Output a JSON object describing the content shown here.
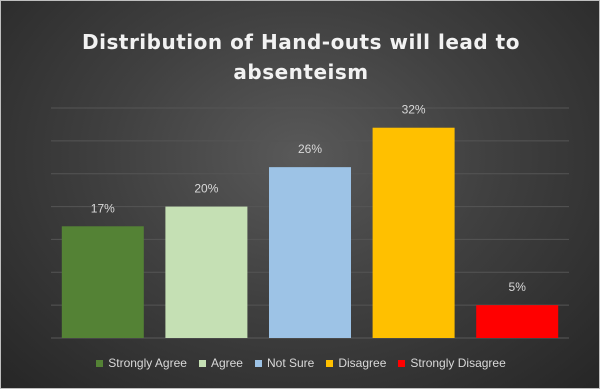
{
  "chart_data": {
    "type": "bar",
    "title": "Distribution of Hand-outs will lead to absenteism",
    "categories": [
      "Strongly Agree",
      "Agree",
      "Not Sure",
      "Disagree",
      "Strongly Disagree"
    ],
    "values": [
      17,
      20,
      26,
      32,
      5
    ],
    "data_labels": [
      "17%",
      "20%",
      "26%",
      "32%",
      "5%"
    ],
    "colors": [
      "#548235",
      "#c5e0b4",
      "#9dc3e6",
      "#ffc000",
      "#ff0000"
    ],
    "ylim": [
      0,
      35
    ],
    "unit": "%",
    "grid": true,
    "legend_position": "bottom",
    "background": "#404040"
  }
}
